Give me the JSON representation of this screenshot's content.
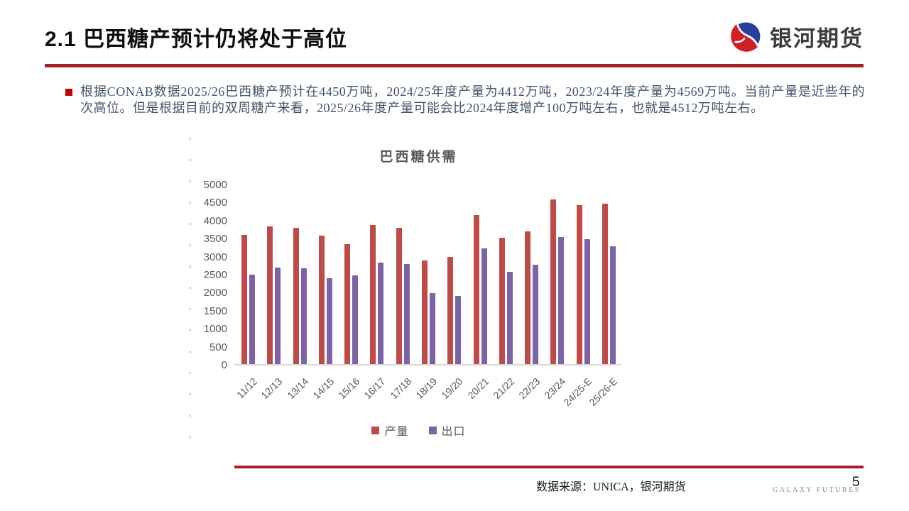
{
  "header": {
    "title": "2.1 巴西糖产预计仍将处于高位",
    "logo_text": "银河期货"
  },
  "bullet": {
    "text": "根据CONAB数据2025/26巴西糖产预计在4450万吨，2024/25年度产量为4412万吨，2023/24年度产量为4569万吨。当前产量是近些年的次高位。但是根据目前的双周糖产来看，2025/26年度产量可能会比2024年度增产100万吨左右，也就是4512万吨左右。"
  },
  "colors": {
    "accent_red_line": "#A32125",
    "bullet_marker": "#C00000",
    "bar_production": "#BE4B48",
    "bar_export": "#7D63A5",
    "chart_text": "#595959",
    "axis_line": "#D9D9D9"
  },
  "chart_data": {
    "type": "bar",
    "title": "巴西糖供需",
    "categories": [
      "11/12",
      "12/13",
      "13/14",
      "14/15",
      "15/16",
      "16/17",
      "17/18",
      "18/19",
      "19/20",
      "20/21",
      "21/22",
      "22/23",
      "23/24",
      "24/25-E",
      "25/26-E"
    ],
    "series": [
      {
        "name": "产量",
        "color": "#BE4B48",
        "values": [
          3580,
          3820,
          3780,
          3560,
          3330,
          3850,
          3780,
          2880,
          2970,
          4130,
          3500,
          3690,
          4569,
          4412,
          4450
        ]
      },
      {
        "name": "出口",
        "color": "#7D63A5",
        "values": [
          2480,
          2680,
          2650,
          2390,
          2460,
          2820,
          2770,
          1960,
          1890,
          3210,
          2550,
          2750,
          3530,
          3460,
          3270
        ]
      }
    ],
    "xlabel": "",
    "ylabel": "",
    "ylim": [
      0,
      5000
    ],
    "ytick_step": 500,
    "grid": false,
    "legend_position": "bottom"
  },
  "footer": {
    "source": "数据来源：UNICA，银河期货",
    "brand": "GALAXY FUTURES",
    "page_number": "5"
  }
}
